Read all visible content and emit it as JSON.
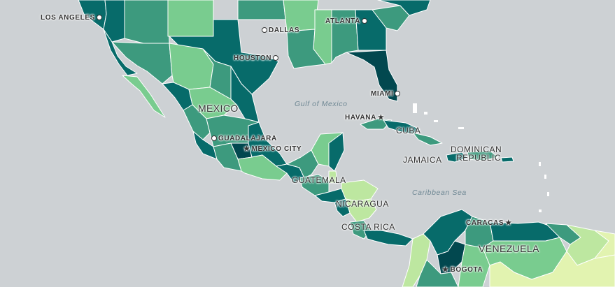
{
  "colors": {
    "water": "#cdd1d4",
    "c1": "#e2f3b0",
    "c2": "#bde7a0",
    "c3": "#79cc8f",
    "c4": "#3d9a7e",
    "c5": "#076b6a",
    "c6": "#02484f"
  },
  "cities": {
    "los_angeles": "LOS ANGELES",
    "dallas": "DALLAS",
    "atlanta": "ATLANTA",
    "houston": "HOUSTON",
    "miami": "MIAMI",
    "havana": "HAVANA",
    "guadalajara": "GUADALAJARA",
    "mexico_city": "MEXICO CITY",
    "caracas": "CARACAS",
    "bogota": "BOGOTA"
  },
  "countries": {
    "mexico": "MEXICO",
    "cuba": "CUBA",
    "dominican_republic_line1": "DOMINICAN",
    "dominican_republic_line2": "REPUBLIC",
    "jamaica": "JAMAICA",
    "guatemala": "GUATEMALA",
    "nicaragua": "NICARAGUA",
    "costa_rica": "COSTA RICA",
    "venezuela": "VENEZUELA"
  },
  "water_bodies": {
    "gulf_of_mexico": "Gulf of Mexico",
    "caribbean_sea": "Caribbean Sea"
  }
}
